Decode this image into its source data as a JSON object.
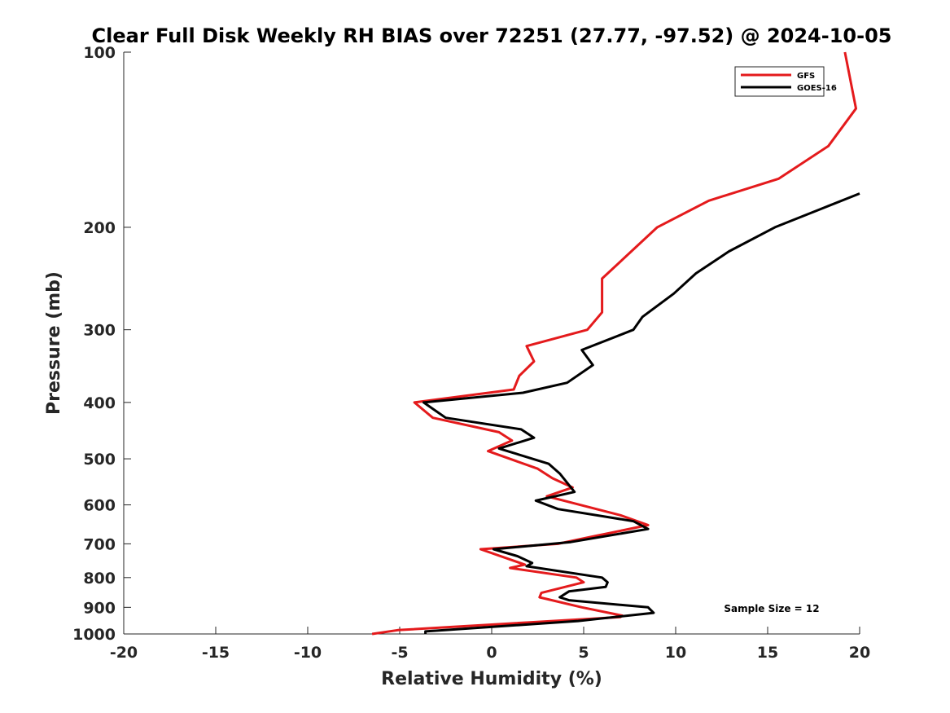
{
  "chart_data": {
    "type": "line",
    "title": "Clear Full Disk Weekly RH BIAS over 72251 (27.77, -97.52) @ 2024-10-05",
    "xlabel": "Relative Humidity (%)",
    "ylabel": "Pressure (mb)",
    "xlim": [
      -20,
      20
    ],
    "ylim": [
      1000,
      100
    ],
    "yscale": "log",
    "yreversed": true,
    "xticks": [
      "-20",
      "-15",
      "-10",
      "-5",
      "0",
      "5",
      "10",
      "15",
      "20"
    ],
    "yticks": [
      "100",
      "200",
      "300",
      "400",
      "500",
      "600",
      "700",
      "800",
      "900",
      "1000"
    ],
    "grid": false,
    "legend": "top-right",
    "annotation": "Sample Size = 12",
    "series": [
      {
        "name": "GFS",
        "color": "#e41a1c",
        "x": [
          19.2,
          19.8,
          18.3,
          15.6,
          11.8,
          9.0,
          6.0,
          6.0,
          5.2,
          1.9,
          2.3,
          1.5,
          1.2,
          -4.2,
          -3.2,
          0.4,
          1.1,
          -0.2,
          2.5,
          3.3,
          4.4,
          3.0,
          7.0,
          8.5,
          5.5,
          3.6,
          -0.6,
          1.8,
          1.0,
          4.6,
          5.0,
          2.7,
          2.6,
          4.9,
          7.1,
          7.0,
          -5.1,
          -6.5
        ],
        "y": [
          100,
          125,
          145,
          165,
          180,
          200,
          245,
          280,
          300,
          320,
          340,
          360,
          380,
          400,
          425,
          450,
          465,
          485,
          520,
          540,
          560,
          580,
          625,
          650,
          680,
          700,
          715,
          760,
          770,
          800,
          815,
          850,
          865,
          900,
          930,
          935,
          985,
          1000
        ]
      },
      {
        "name": "GOES-16",
        "color": "#000000",
        "x": [
          20.0,
          15.4,
          12.9,
          11.1,
          9.9,
          8.2,
          7.7,
          4.9,
          5.5,
          4.1,
          1.7,
          -3.7,
          -2.5,
          1.6,
          2.3,
          0.4,
          3.1,
          3.7,
          4.5,
          2.4,
          3.6,
          7.7,
          8.5,
          4.3,
          0.1,
          1.4,
          2.2,
          1.9,
          6.0,
          6.3,
          6.2,
          4.2,
          3.7,
          4.2,
          8.5,
          8.8,
          4.7,
          -3.6,
          -3.6
        ],
        "y": [
          175,
          200,
          220,
          240,
          260,
          285,
          300,
          325,
          345,
          370,
          385,
          400,
          425,
          445,
          460,
          480,
          510,
          530,
          570,
          590,
          610,
          640,
          660,
          695,
          715,
          735,
          755,
          765,
          800,
          815,
          830,
          845,
          865,
          875,
          900,
          920,
          950,
          990,
          1000
        ]
      }
    ]
  }
}
